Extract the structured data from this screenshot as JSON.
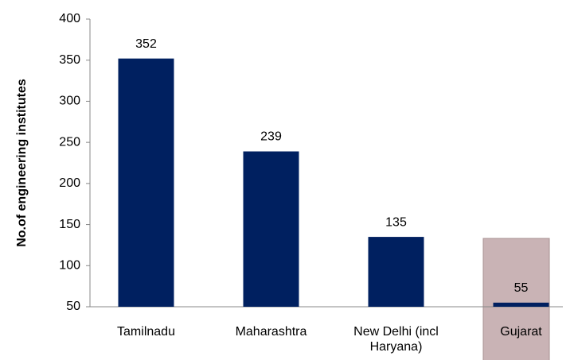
{
  "chart_data": {
    "type": "bar",
    "y_label": "No.of engineering institutes",
    "categories": [
      "Tamilnadu",
      "Maharashtra",
      "New Delhi (incl Haryana)",
      "Gujarat"
    ],
    "values": [
      352,
      239,
      135,
      55
    ],
    "color": "#002060",
    "ylim": [
      50,
      400
    ],
    "yticks": [
      50,
      100,
      150,
      200,
      250,
      300,
      350,
      400
    ],
    "grid": false
  }
}
